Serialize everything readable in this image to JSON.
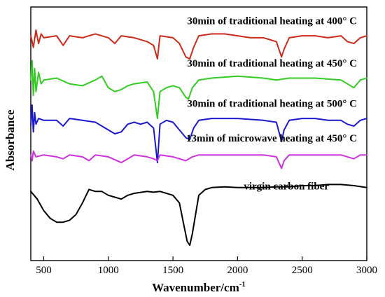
{
  "chart_data": {
    "type": "line",
    "xlabel": "Wavenumber/cm",
    "xlabel_sup": "-1",
    "ylabel": "Absorbance",
    "xlim": [
      400,
      3000
    ],
    "xticks": [
      500,
      1000,
      1500,
      2000,
      2500,
      3000
    ],
    "xtick_labels": [
      "500",
      "1000",
      "1500",
      "2000",
      "2500",
      "3000"
    ],
    "grid": false,
    "series": [
      {
        "name": "30min of traditional heating at 400° C",
        "color": "#cc2a1a",
        "baseline": 4.6,
        "points": [
          [
            400,
            0.05
          ],
          [
            420,
            -0.25
          ],
          [
            440,
            0.2
          ],
          [
            460,
            -0.15
          ],
          [
            480,
            0.1
          ],
          [
            500,
            0.0
          ],
          [
            600,
            0.05
          ],
          [
            650,
            -0.2
          ],
          [
            700,
            0.05
          ],
          [
            800,
            0.0
          ],
          [
            900,
            0.1
          ],
          [
            1000,
            0.0
          ],
          [
            1050,
            -0.15
          ],
          [
            1100,
            0.05
          ],
          [
            1200,
            0.0
          ],
          [
            1300,
            -0.1
          ],
          [
            1350,
            -0.2
          ],
          [
            1380,
            -0.55
          ],
          [
            1400,
            0.05
          ],
          [
            1500,
            0.0
          ],
          [
            1550,
            -0.15
          ],
          [
            1600,
            -0.5
          ],
          [
            1630,
            -0.55
          ],
          [
            1660,
            -0.25
          ],
          [
            1700,
            0.05
          ],
          [
            1800,
            0.1
          ],
          [
            1900,
            0.1
          ],
          [
            2000,
            0.05
          ],
          [
            2100,
            0.0
          ],
          [
            2200,
            0.0
          ],
          [
            2300,
            -0.1
          ],
          [
            2340,
            -0.5
          ],
          [
            2360,
            -0.3
          ],
          [
            2400,
            0.0
          ],
          [
            2500,
            0.05
          ],
          [
            2600,
            0.05
          ],
          [
            2700,
            0.0
          ],
          [
            2800,
            0.05
          ],
          [
            2850,
            -0.1
          ],
          [
            2900,
            -0.15
          ],
          [
            2950,
            0.0
          ],
          [
            3000,
            0.05
          ]
        ]
      },
      {
        "name": "30min of traditional heating at 450° C",
        "color": "#33cc22",
        "baseline": 3.5,
        "points": [
          [
            400,
            0.0
          ],
          [
            410,
            0.5
          ],
          [
            420,
            -0.4
          ],
          [
            430,
            0.3
          ],
          [
            440,
            -0.3
          ],
          [
            460,
            0.2
          ],
          [
            480,
            -0.1
          ],
          [
            500,
            0.0
          ],
          [
            600,
            0.05
          ],
          [
            700,
            -0.1
          ],
          [
            800,
            -0.15
          ],
          [
            900,
            0.0
          ],
          [
            950,
            0.1
          ],
          [
            1000,
            -0.2
          ],
          [
            1050,
            -0.3
          ],
          [
            1100,
            -0.25
          ],
          [
            1150,
            -0.15
          ],
          [
            1200,
            -0.1
          ],
          [
            1300,
            -0.05
          ],
          [
            1350,
            -0.3
          ],
          [
            1380,
            -1.0
          ],
          [
            1400,
            -0.3
          ],
          [
            1450,
            -0.2
          ],
          [
            1500,
            -0.15
          ],
          [
            1550,
            -0.2
          ],
          [
            1600,
            -0.45
          ],
          [
            1620,
            -0.5
          ],
          [
            1650,
            -0.2
          ],
          [
            1700,
            0.0
          ],
          [
            1800,
            0.05
          ],
          [
            2000,
            0.1
          ],
          [
            2200,
            0.05
          ],
          [
            2300,
            0.0
          ],
          [
            2400,
            0.05
          ],
          [
            2600,
            0.05
          ],
          [
            2800,
            0.0
          ],
          [
            2850,
            -0.1
          ],
          [
            2900,
            -0.2
          ],
          [
            2950,
            0.0
          ],
          [
            3000,
            0.05
          ]
        ]
      },
      {
        "name": "30min of traditional heating at 500° C",
        "color": "#1a1acc",
        "baseline": 2.45,
        "points": [
          [
            400,
            -0.15
          ],
          [
            410,
            0.4
          ],
          [
            420,
            -0.3
          ],
          [
            430,
            0.2
          ],
          [
            440,
            -0.1
          ],
          [
            460,
            0.05
          ],
          [
            500,
            0.0
          ],
          [
            600,
            0.0
          ],
          [
            650,
            -0.15
          ],
          [
            700,
            0.05
          ],
          [
            800,
            0.0
          ],
          [
            900,
            -0.05
          ],
          [
            1000,
            -0.25
          ],
          [
            1050,
            -0.35
          ],
          [
            1100,
            -0.3
          ],
          [
            1150,
            -0.1
          ],
          [
            1200,
            -0.05
          ],
          [
            1250,
            -0.1
          ],
          [
            1300,
            -0.05
          ],
          [
            1350,
            -0.2
          ],
          [
            1380,
            -1.1
          ],
          [
            1400,
            -0.1
          ],
          [
            1450,
            0.0
          ],
          [
            1500,
            -0.05
          ],
          [
            1600,
            -0.45
          ],
          [
            1630,
            -0.5
          ],
          [
            1660,
            -0.2
          ],
          [
            1700,
            0.0
          ],
          [
            1800,
            0.05
          ],
          [
            2000,
            0.05
          ],
          [
            2200,
            0.0
          ],
          [
            2300,
            -0.05
          ],
          [
            2340,
            -0.55
          ],
          [
            2360,
            -0.25
          ],
          [
            2400,
            0.0
          ],
          [
            2500,
            0.05
          ],
          [
            2600,
            0.05
          ],
          [
            2700,
            0.0
          ],
          [
            2800,
            0.0
          ],
          [
            2850,
            -0.1
          ],
          [
            2900,
            -0.15
          ],
          [
            2950,
            0.0
          ],
          [
            3000,
            0.05
          ]
        ]
      },
      {
        "name": "13min of microwave heating at 450° C",
        "color": "#cc33dd",
        "baseline": 1.55,
        "points": [
          [
            400,
            0.0
          ],
          [
            410,
            -0.15
          ],
          [
            420,
            0.1
          ],
          [
            440,
            -0.05
          ],
          [
            500,
            0.0
          ],
          [
            600,
            -0.05
          ],
          [
            650,
            -0.1
          ],
          [
            700,
            0.0
          ],
          [
            800,
            -0.05
          ],
          [
            850,
            -0.15
          ],
          [
            900,
            0.0
          ],
          [
            1000,
            -0.05
          ],
          [
            1100,
            -0.2
          ],
          [
            1150,
            -0.1
          ],
          [
            1200,
            0.0
          ],
          [
            1300,
            -0.05
          ],
          [
            1350,
            -0.1
          ],
          [
            1380,
            -0.15
          ],
          [
            1400,
            0.0
          ],
          [
            1500,
            -0.05
          ],
          [
            1600,
            -0.15
          ],
          [
            1650,
            -0.05
          ],
          [
            1700,
            0.0
          ],
          [
            1800,
            0.0
          ],
          [
            2000,
            0.0
          ],
          [
            2200,
            0.0
          ],
          [
            2300,
            -0.05
          ],
          [
            2340,
            -0.35
          ],
          [
            2360,
            -0.15
          ],
          [
            2400,
            0.0
          ],
          [
            2500,
            0.0
          ],
          [
            2600,
            0.0
          ],
          [
            2700,
            0.0
          ],
          [
            2800,
            0.0
          ],
          [
            2900,
            -0.1
          ],
          [
            2950,
            0.0
          ],
          [
            3000,
            0.0
          ]
        ]
      },
      {
        "name": "virgin carbon fiber",
        "color": "#000000",
        "baseline": 0.3,
        "points": [
          [
            400,
            0.3
          ],
          [
            450,
            0.1
          ],
          [
            500,
            -0.2
          ],
          [
            550,
            -0.4
          ],
          [
            600,
            -0.5
          ],
          [
            650,
            -0.5
          ],
          [
            700,
            -0.45
          ],
          [
            750,
            -0.3
          ],
          [
            800,
            0.0
          ],
          [
            850,
            0.35
          ],
          [
            900,
            0.3
          ],
          [
            950,
            0.3
          ],
          [
            1000,
            0.2
          ],
          [
            1050,
            0.15
          ],
          [
            1100,
            0.1
          ],
          [
            1150,
            0.2
          ],
          [
            1200,
            0.25
          ],
          [
            1300,
            0.3
          ],
          [
            1350,
            0.28
          ],
          [
            1400,
            0.3
          ],
          [
            1450,
            0.25
          ],
          [
            1500,
            0.2
          ],
          [
            1550,
            0.0
          ],
          [
            1580,
            -0.5
          ],
          [
            1610,
            -1.0
          ],
          [
            1630,
            -1.1
          ],
          [
            1650,
            -0.8
          ],
          [
            1680,
            -0.2
          ],
          [
            1700,
            0.2
          ],
          [
            1750,
            0.35
          ],
          [
            1800,
            0.4
          ],
          [
            1900,
            0.42
          ],
          [
            2000,
            0.4
          ],
          [
            2100,
            0.4
          ],
          [
            2200,
            0.4
          ],
          [
            2300,
            0.42
          ],
          [
            2400,
            0.42
          ],
          [
            2500,
            0.45
          ],
          [
            2600,
            0.45
          ],
          [
            2700,
            0.48
          ],
          [
            2800,
            0.48
          ],
          [
            2900,
            0.45
          ],
          [
            3000,
            0.4
          ]
        ]
      }
    ],
    "labels": [
      {
        "text": "30min of traditional heating at 400° C",
        "series": 0
      },
      {
        "text": "30min of traditional heating at 450° C",
        "series": 1
      },
      {
        "text": "30min of traditional heating at 500° C",
        "series": 2
      },
      {
        "text": "13min of microwave heating at 450° C",
        "series": 3
      },
      {
        "text": "virgin carbon fiber",
        "series": 4
      }
    ],
    "ylim": [
      -1.2,
      5.4
    ]
  }
}
